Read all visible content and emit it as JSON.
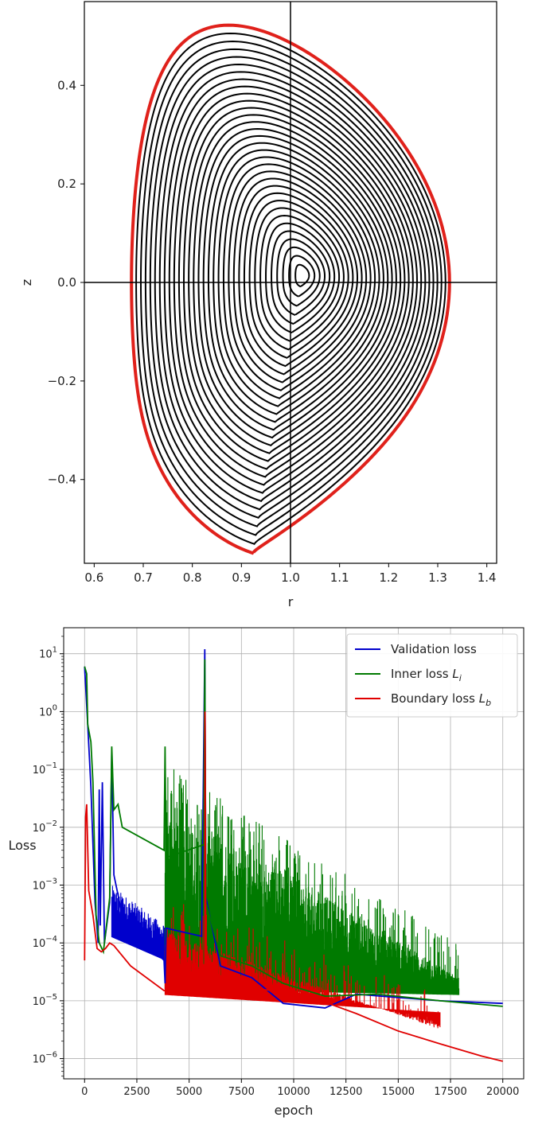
{
  "chart_data": [
    {
      "type": "contour",
      "xlabel": "r",
      "ylabel": "z",
      "xlim": [
        0.58,
        1.42
      ],
      "ylim": [
        -0.57,
        0.57
      ],
      "x_ticks": [
        "0.6",
        "0.7",
        "0.8",
        "0.9",
        "1.0",
        "1.1",
        "1.2",
        "1.3",
        "1.4"
      ],
      "x_tick_values": [
        0.6,
        0.7,
        0.8,
        0.9,
        1.0,
        1.1,
        1.2,
        1.3,
        1.4
      ],
      "y_ticks": [
        "0.4",
        "0.2",
        "0.0",
        "−0.2",
        "−0.4"
      ],
      "y_tick_values": [
        0.4,
        0.2,
        0.0,
        -0.2,
        -0.4
      ],
      "reference_lines": {
        "r": 1.0,
        "z": 0.0
      },
      "boundary": {
        "color": "#e0211b",
        "r_min": 0.675,
        "r_max": 1.322,
        "top": {
          "r": 0.87,
          "z": 0.52
        },
        "x_point": {
          "r": 0.925,
          "z": -0.55
        }
      },
      "contour_color": "#000000",
      "magnetic_axis": {
        "r": 1.025,
        "z": 0.015
      },
      "contour_levels": 32
    },
    {
      "type": "line",
      "xlabel": "epoch",
      "ylabel": "Loss",
      "yscale": "log",
      "xlim": [
        -1000,
        21000
      ],
      "ylim_exp": [
        -6.35,
        1.45
      ],
      "x_ticks": [
        "0",
        "2500",
        "5000",
        "7500",
        "10000",
        "12500",
        "15000",
        "17500",
        "20000"
      ],
      "x_tick_values": [
        0,
        2500,
        5000,
        7500,
        10000,
        12500,
        15000,
        17500,
        20000
      ],
      "y_tick_exponents": [
        1,
        0,
        -1,
        -2,
        -3,
        -4,
        -5,
        -6
      ],
      "grid": true,
      "legend_position": "top-right",
      "series": [
        {
          "name": "Validation loss",
          "color": "#0000cc",
          "points": [
            [
              0,
              6.0
            ],
            [
              150,
              0.6
            ],
            [
              300,
              0.05
            ],
            [
              500,
              0.0005
            ],
            [
              650,
              0.0001
            ],
            [
              700,
              0.045
            ],
            [
              750,
              0.0002
            ],
            [
              850,
              0.06
            ],
            [
              950,
              0.0001
            ],
            [
              1200,
              0.0005
            ],
            [
              1300,
              0.2
            ],
            [
              1400,
              0.0015
            ],
            [
              1800,
              0.0003
            ],
            [
              2200,
              0.0002
            ],
            [
              3800,
              5e-05
            ],
            [
              3850,
              2e-05
            ],
            [
              3900,
              0.00018
            ],
            [
              5600,
              0.00013
            ],
            [
              5750,
              12.0
            ],
            [
              5800,
              0.0006
            ],
            [
              6500,
              4e-05
            ],
            [
              8000,
              2.5e-05
            ],
            [
              9500,
              9e-06
            ],
            [
              11500,
              7.5e-06
            ],
            [
              13000,
              1.3e-05
            ],
            [
              17000,
              1e-05
            ],
            [
              20000,
              9e-06
            ]
          ]
        },
        {
          "name": "Inner loss L_i",
          "color": "#007a00",
          "points": [
            [
              0,
              6.0
            ],
            [
              100,
              4.5
            ],
            [
              150,
              0.6
            ],
            [
              300,
              0.3
            ],
            [
              400,
              0.06
            ],
            [
              550,
              0.0003
            ],
            [
              700,
              0.0001
            ],
            [
              900,
              7e-05
            ],
            [
              1200,
              0.0006
            ],
            [
              1300,
              0.25
            ],
            [
              1400,
              0.02
            ],
            [
              1600,
              0.025
            ],
            [
              1800,
              0.01
            ],
            [
              3800,
              0.004
            ],
            [
              3850,
              0.25
            ],
            [
              3900,
              0.003
            ],
            [
              5700,
              0.005
            ],
            [
              5750,
              8.0
            ],
            [
              5800,
              0.0005
            ],
            [
              6500,
              6e-05
            ],
            [
              8000,
              4e-05
            ],
            [
              9500,
              2e-05
            ],
            [
              11500,
              1.2e-05
            ],
            [
              14000,
              1.3e-05
            ],
            [
              17000,
              1e-05
            ],
            [
              20000,
              8e-06
            ]
          ]
        },
        {
          "name": "Boundary loss L_b",
          "color": "#e00000",
          "points": [
            [
              0,
              5e-05
            ],
            [
              50,
              0.015
            ],
            [
              100,
              0.025
            ],
            [
              200,
              0.0008
            ],
            [
              400,
              0.0003
            ],
            [
              600,
              8e-05
            ],
            [
              800,
              7e-05
            ],
            [
              1000,
              8e-05
            ],
            [
              1200,
              0.0001
            ],
            [
              1400,
              9e-05
            ],
            [
              1800,
              6e-05
            ],
            [
              2200,
              4e-05
            ],
            [
              3800,
              1.5e-05
            ],
            [
              5750,
              1.4e-05
            ],
            [
              5760,
              1.0
            ],
            [
              5800,
              2e-05
            ],
            [
              7000,
              1.8e-05
            ],
            [
              9000,
              1.5e-05
            ],
            [
              11000,
              1.1e-05
            ],
            [
              13000,
              6e-06
            ],
            [
              15000,
              3e-06
            ],
            [
              17000,
              1.8e-06
            ],
            [
              19000,
              1.1e-06
            ],
            [
              20000,
              9e-07
            ]
          ]
        }
      ],
      "bands": [
        {
          "series": "Inner loss L_i",
          "x": [
            3850,
            17900
          ],
          "lo_exp": [
            -4.8,
            -4.9
          ],
          "hi_exp": [
            -1.5,
            -4.6
          ],
          "spikes": true
        },
        {
          "series": "Validation loss",
          "x": [
            1300,
            3850
          ],
          "lo_exp": [
            -3.9,
            -4.3
          ],
          "hi_exp": [
            -3.0,
            -3.7
          ],
          "spikes": false
        },
        {
          "series": "Boundary loss L_b",
          "x": [
            3850,
            17000
          ],
          "lo_exp": [
            -4.9,
            -5.2
          ],
          "hi_exp": [
            -3.8,
            -5.5
          ],
          "spikes": true
        }
      ]
    }
  ]
}
